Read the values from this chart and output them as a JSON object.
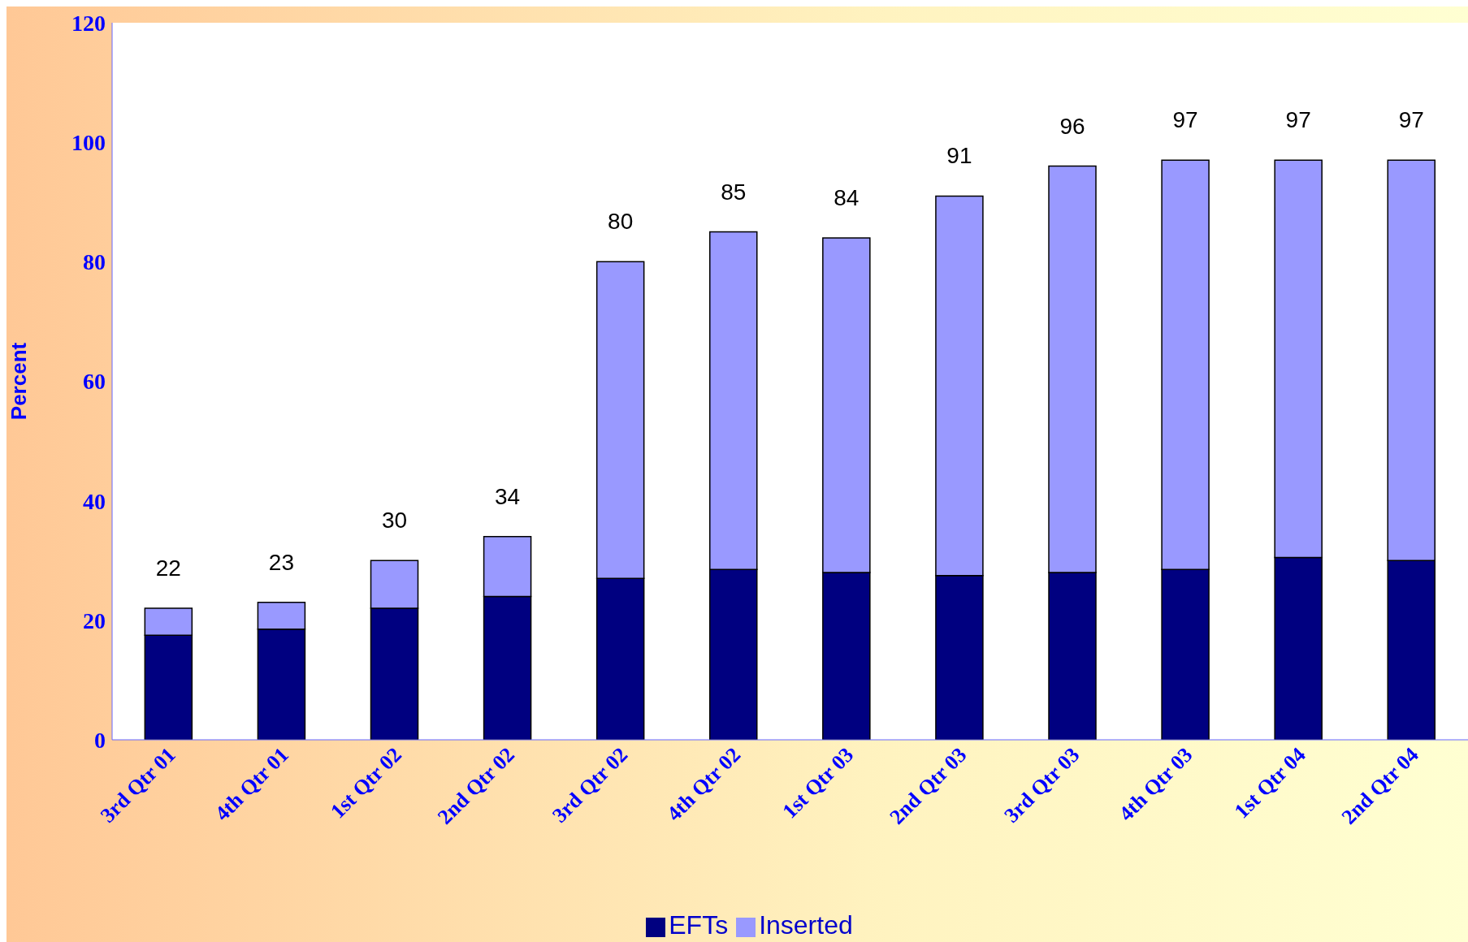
{
  "chart_data": {
    "type": "bar",
    "stacked": true,
    "ylabel": "Percent",
    "categories": [
      "3rd Qtr 01",
      "4th Qtr 01",
      "1st Qtr 02",
      "2nd Qtr 02",
      "3rd Qtr 02",
      "4th Qtr 02",
      "1st Qtr 03",
      "2nd Qtr 03",
      "3rd Qtr 03",
      "4th Qtr 03",
      "1st Qtr 04",
      "2nd Qtr 04"
    ],
    "series": [
      {
        "name": "EFTs",
        "color": "#000080",
        "values": [
          17.5,
          18.5,
          22,
          24,
          27,
          28.5,
          28,
          27.5,
          28,
          28.5,
          30.5,
          30
        ]
      },
      {
        "name": "Inserted",
        "color": "#9999ff",
        "values": [
          4.5,
          4.5,
          8,
          10,
          53,
          56.5,
          56,
          63.5,
          68,
          68.5,
          66.5,
          67
        ]
      }
    ],
    "totals": [
      "22",
      "23",
      "30",
      "34",
      "80",
      "85",
      "84",
      "91",
      "96",
      "97",
      "97",
      "97"
    ],
    "ylim": [
      0,
      120
    ],
    "yticks": [
      0,
      20,
      40,
      60,
      80,
      100,
      120
    ],
    "legend": "bottom"
  }
}
